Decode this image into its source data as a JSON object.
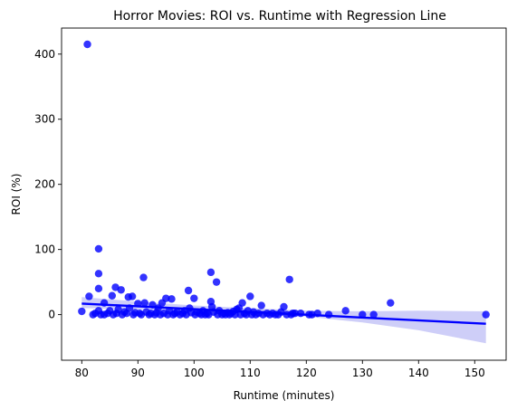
{
  "chart_data": {
    "type": "scatter",
    "title": "Horror Movies: ROI vs. Runtime with Regression Line",
    "xlabel": "Runtime (minutes)",
    "ylabel": "ROI (%)",
    "xlim": [
      76.4,
      155.6
    ],
    "ylim": [
      -70,
      440
    ],
    "xticks": [
      80,
      90,
      100,
      110,
      120,
      130,
      140,
      150
    ],
    "yticks": [
      0,
      100,
      200,
      300,
      400
    ],
    "grid": false,
    "colors": {
      "points": "#0000ff",
      "regression": "#0000ff",
      "band": "#c6c6f7"
    },
    "series": [
      {
        "points": [
          [
            80,
            5
          ],
          [
            81,
            415
          ],
          [
            81.3,
            28
          ],
          [
            82,
            0
          ],
          [
            82.4,
            2
          ],
          [
            83,
            101
          ],
          [
            83,
            63
          ],
          [
            83,
            40
          ],
          [
            83,
            6
          ],
          [
            83.4,
            0
          ],
          [
            84,
            0
          ],
          [
            84,
            18
          ],
          [
            84.6,
            2
          ],
          [
            85,
            6
          ],
          [
            85.4,
            29
          ],
          [
            85.6,
            0
          ],
          [
            86,
            42
          ],
          [
            86.2,
            2
          ],
          [
            86.5,
            8
          ],
          [
            87,
            38
          ],
          [
            87.2,
            0
          ],
          [
            87.6,
            4
          ],
          [
            88,
            2
          ],
          [
            88.3,
            27
          ],
          [
            88.5,
            10
          ],
          [
            89,
            28
          ],
          [
            89.2,
            0
          ],
          [
            89.5,
            3
          ],
          [
            90,
            17
          ],
          [
            90.3,
            2
          ],
          [
            90.6,
            0
          ],
          [
            91,
            57
          ],
          [
            91.2,
            18
          ],
          [
            91.5,
            4
          ],
          [
            92,
            0
          ],
          [
            92.3,
            2
          ],
          [
            92.6,
            15
          ],
          [
            93,
            0
          ],
          [
            93.3,
            3
          ],
          [
            93.6,
            10
          ],
          [
            94,
            0
          ],
          [
            94.3,
            18
          ],
          [
            94.6,
            2
          ],
          [
            95,
            25
          ],
          [
            95.3,
            0
          ],
          [
            95.6,
            6
          ],
          [
            96,
            24
          ],
          [
            96.3,
            0
          ],
          [
            96.6,
            2
          ],
          [
            97,
            4
          ],
          [
            97.5,
            0
          ],
          [
            98,
            2
          ],
          [
            98.3,
            6
          ],
          [
            98.6,
            0
          ],
          [
            99,
            37
          ],
          [
            99.2,
            10
          ],
          [
            99.5,
            3
          ],
          [
            100,
            25
          ],
          [
            100.2,
            0
          ],
          [
            100.5,
            4
          ],
          [
            101,
            2
          ],
          [
            101.3,
            0
          ],
          [
            101.6,
            6
          ],
          [
            102,
            0
          ],
          [
            102.3,
            2
          ],
          [
            102.6,
            0
          ],
          [
            103,
            65
          ],
          [
            103,
            20
          ],
          [
            103.2,
            12
          ],
          [
            103.5,
            4
          ],
          [
            104,
            50
          ],
          [
            104.2,
            0
          ],
          [
            104.5,
            6
          ],
          [
            105,
            0
          ],
          [
            105.3,
            2
          ],
          [
            105.6,
            0
          ],
          [
            106,
            3
          ],
          [
            106.3,
            0
          ],
          [
            106.6,
            2
          ],
          [
            107,
            5
          ],
          [
            107.3,
            0
          ],
          [
            107.6,
            8
          ],
          [
            108,
            10
          ],
          [
            108.3,
            0
          ],
          [
            108.6,
            18
          ],
          [
            109,
            2
          ],
          [
            109.3,
            0
          ],
          [
            109.6,
            6
          ],
          [
            110,
            28
          ],
          [
            110.3,
            0
          ],
          [
            110.6,
            4
          ],
          [
            111,
            0
          ],
          [
            111.5,
            2
          ],
          [
            112,
            14
          ],
          [
            112.3,
            0
          ],
          [
            113,
            2
          ],
          [
            113.5,
            0
          ],
          [
            114,
            2
          ],
          [
            114.5,
            0
          ],
          [
            115,
            0
          ],
          [
            115.5,
            4
          ],
          [
            116,
            12
          ],
          [
            116.5,
            0
          ],
          [
            117,
            54
          ],
          [
            117.3,
            0
          ],
          [
            117.6,
            2
          ],
          [
            118,
            2
          ],
          [
            119,
            2
          ],
          [
            120.5,
            0
          ],
          [
            121,
            0
          ],
          [
            122,
            2
          ],
          [
            124,
            0
          ],
          [
            127,
            6
          ],
          [
            130,
            0
          ],
          [
            132,
            0
          ],
          [
            135,
            18
          ],
          [
            152,
            0
          ]
        ]
      }
    ],
    "regression": {
      "x": [
        80,
        152
      ],
      "y": [
        17,
        -14
      ]
    },
    "confidence_band": {
      "x": [
        80,
        90,
        100,
        110,
        115,
        120,
        130,
        140,
        152
      ],
      "lower": [
        10,
        8,
        4,
        2,
        0,
        -3,
        -12,
        -24,
        -44
      ],
      "upper": [
        27,
        20,
        14,
        10,
        8,
        6,
        5,
        6,
        5
      ]
    }
  }
}
